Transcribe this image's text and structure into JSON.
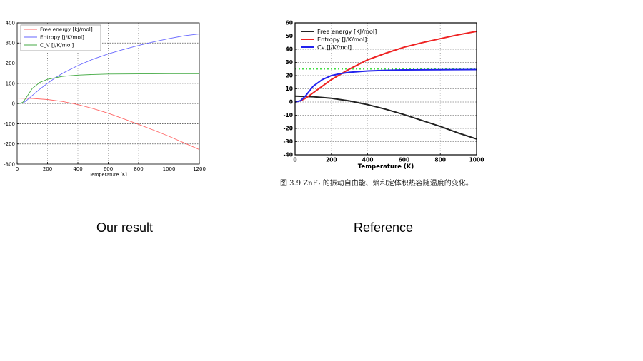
{
  "chart_data": [
    {
      "type": "line",
      "xlabel": "Temperature [K]",
      "ylabel": "",
      "xlim": [
        0,
        1200
      ],
      "ylim": [
        -300,
        400
      ],
      "xticks": [
        0,
        200,
        400,
        600,
        800,
        1000,
        1200
      ],
      "yticks": [
        -300,
        -200,
        -100,
        0,
        100,
        200,
        300,
        400
      ],
      "grid": true,
      "grid_style": "dotted",
      "legend_position": "top-left",
      "series": [
        {
          "name": "Free energy [kJ/mol]",
          "color": "#ff6666",
          "x": [
            0,
            100,
            200,
            300,
            400,
            500,
            600,
            700,
            800,
            900,
            1000,
            1100,
            1200
          ],
          "y": [
            27,
            25,
            20,
            10,
            -5,
            -25,
            -48,
            -75,
            -103,
            -132,
            -162,
            -195,
            -228
          ]
        },
        {
          "name": "Entropy [J/K/mol]",
          "color": "#6666ff",
          "x": [
            0,
            20,
            40,
            60,
            100,
            150,
            200,
            250,
            300,
            400,
            500,
            600,
            700,
            800,
            900,
            1000,
            1100,
            1200
          ],
          "y": [
            0,
            0,
            3,
            14,
            40,
            72,
            100,
            127,
            150,
            188,
            220,
            246,
            268,
            288,
            306,
            322,
            336,
            345
          ]
        },
        {
          "name": "C_V [J/K/mol]",
          "color": "#44aa44",
          "x": [
            0,
            20,
            40,
            60,
            100,
            150,
            200,
            300,
            400,
            500,
            600,
            800,
            1000,
            1200
          ],
          "y": [
            0,
            0,
            8,
            30,
            75,
            105,
            120,
            135,
            141,
            144,
            146,
            147,
            148,
            148
          ]
        }
      ]
    },
    {
      "type": "line",
      "xlabel": "Temperature (K)",
      "ylabel": "",
      "xlim": [
        0,
        1000
      ],
      "ylim": [
        -40,
        60
      ],
      "xticks": [
        0,
        200,
        400,
        600,
        800,
        1000
      ],
      "yticks": [
        -40,
        -30,
        -20,
        -10,
        0,
        10,
        20,
        30,
        40,
        50,
        60
      ],
      "grid": true,
      "grid_style": "dotted",
      "legend_position": "top-left",
      "reference_line": {
        "y": 25,
        "color": "#44dd44",
        "style": "dotted"
      },
      "series": [
        {
          "name": "Free energy [KJ/mol]",
          "color": "#222222",
          "x": [
            0,
            100,
            200,
            300,
            400,
            500,
            600,
            700,
            800,
            900,
            1000,
            1030
          ],
          "y": [
            4.5,
            4,
            2.8,
            0.8,
            -2,
            -5.5,
            -9.5,
            -14,
            -18.5,
            -23.5,
            -28,
            -29
          ]
        },
        {
          "name": "Entropy [J/K/mol]",
          "color": "#ee2222",
          "x": [
            0,
            30,
            60,
            100,
            150,
            200,
            300,
            400,
            500,
            600,
            700,
            800,
            900,
            1000,
            1030
          ],
          "y": [
            0,
            1,
            3,
            7,
            12,
            17,
            25,
            32,
            37,
            41.5,
            45,
            48,
            51,
            53.5,
            54
          ]
        },
        {
          "name": "Cv [J/K/mol]",
          "color": "#2222ee",
          "x": [
            0,
            30,
            60,
            100,
            150,
            200,
            250,
            300,
            400,
            500,
            600,
            800,
            1000,
            1030
          ],
          "y": [
            0,
            1,
            5,
            12,
            17,
            20,
            21.5,
            22.5,
            23.5,
            24,
            24.3,
            24.5,
            24.6,
            24.6
          ]
        }
      ]
    }
  ],
  "figure_caption": "图 3.9  ZnF₂ 的振动自由能、熵和定体积热容随温度的变化。",
  "captions": {
    "left": "Our result",
    "right": "Reference"
  }
}
